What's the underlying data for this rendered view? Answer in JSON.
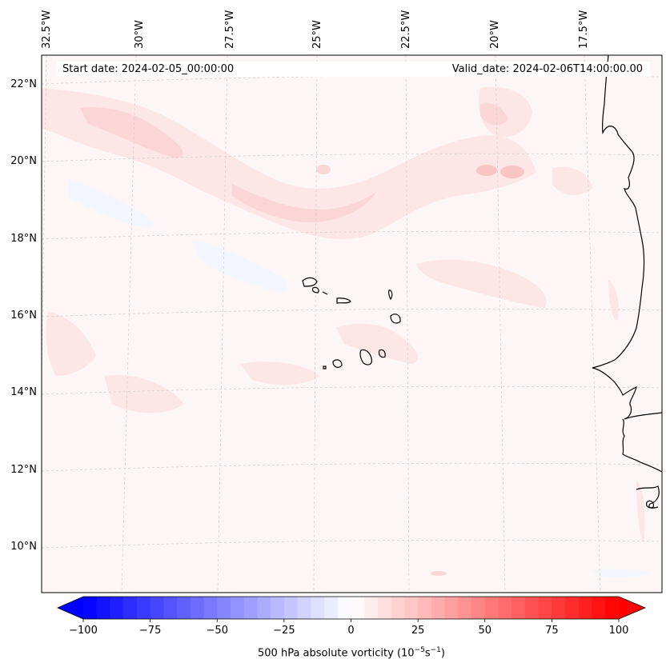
{
  "map": {
    "start_date_text": "Start date: 2024-02-05_00:00:00",
    "valid_date_text": "Valid_date: 2024-02-06T14:00:00.00",
    "lon_labels": [
      "32.5°W",
      "30°W",
      "27.5°W",
      "25°W",
      "22.5°W",
      "20°W",
      "17.5°W"
    ],
    "lat_labels": [
      "22°N",
      "20°N",
      "18°N",
      "16°N",
      "14°N",
      "12°N",
      "10°N"
    ],
    "field_colors": {
      "background": "#fdf6f6",
      "light_pink": "#fde6e6",
      "pink": "#fbd4d4",
      "pale_blue": "#f4f7fd"
    }
  },
  "colorbar": {
    "ticks": [
      "−100",
      "−75",
      "−50",
      "−25",
      "0",
      "25",
      "50",
      "75",
      "100"
    ],
    "label_main": "500 hPa absolute vorticity (10",
    "label_exp1": "−5",
    "label_mid": "s",
    "label_exp2": "−1",
    "label_end": ")",
    "min_color": "#0000ff",
    "max_color": "#ff0000",
    "center_color": "#ffffff",
    "levels": 40
  }
}
